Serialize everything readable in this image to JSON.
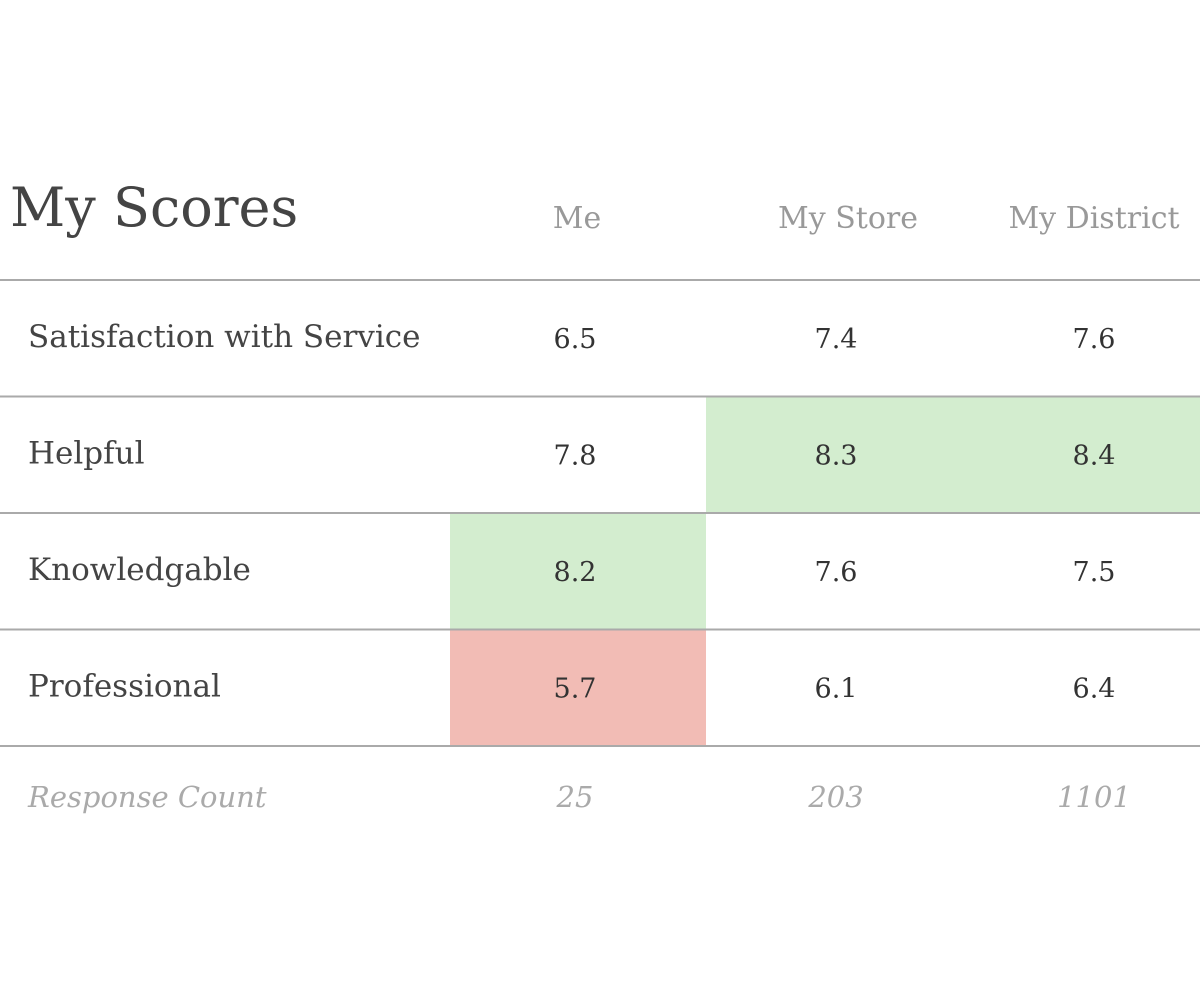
{
  "title": "My Scores",
  "columns": [
    "Me",
    "My Store",
    "My District"
  ],
  "rows": [
    {
      "label": "Satisfaction with Service",
      "values": [
        6.5,
        7.4,
        7.6
      ],
      "colors": [
        null,
        null,
        null
      ]
    },
    {
      "label": "Helpful",
      "values": [
        7.8,
        8.3,
        8.4
      ],
      "colors": [
        null,
        "#d3edcf",
        "#d3edcf"
      ]
    },
    {
      "label": "Knowledgable",
      "values": [
        8.2,
        7.6,
        7.5
      ],
      "colors": [
        "#d3edcf",
        null,
        null
      ]
    },
    {
      "label": "Professional",
      "values": [
        5.7,
        6.1,
        6.4
      ],
      "colors": [
        "#f2bcb5",
        null,
        null
      ]
    }
  ],
  "footer": {
    "label": "Response Count",
    "values": [
      25,
      203,
      1101
    ]
  }
}
